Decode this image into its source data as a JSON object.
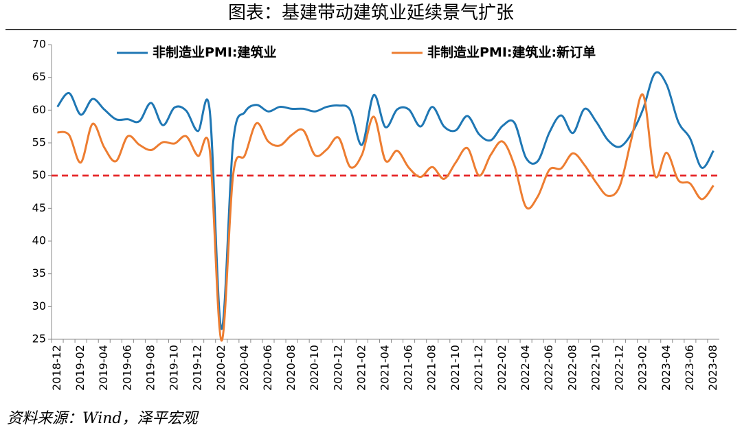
{
  "chart_data": {
    "type": "line",
    "title": "图表：基建带动建筑业延续景气扩张",
    "source": "资料来源：Wind，泽平宏观",
    "categories": [
      "2018-12",
      null,
      "2019-02",
      null,
      "2019-04",
      null,
      "2019-06",
      null,
      "2019-08",
      null,
      "2019-10",
      null,
      "2019-12",
      null,
      "2020-02",
      null,
      "2020-04",
      null,
      "2020-06",
      null,
      "2020-08",
      null,
      "2020-10",
      null,
      "2020-12",
      null,
      "2021-02",
      null,
      "2021-04",
      null,
      "2021-06",
      null,
      "2021-08",
      null,
      "2021-10",
      null,
      "2021-12",
      null,
      "2022-02",
      null,
      "2022-04",
      null,
      "2022-06",
      null,
      "2022-08",
      null,
      "2022-10",
      null,
      "2022-12",
      null,
      "2023-02",
      null,
      "2023-04",
      null,
      "2023-06",
      null,
      "2023-08"
    ],
    "series": [
      {
        "name": "非制造业PMI:建筑业",
        "color": "#1f77b4",
        "values": [
          60.5,
          62.6,
          59.3,
          61.7,
          60.1,
          58.6,
          58.6,
          58.3,
          61.1,
          57.7,
          60.4,
          59.9,
          56.8,
          60.0,
          26.6,
          55.1,
          59.7,
          60.8,
          59.8,
          60.5,
          60.2,
          60.2,
          59.8,
          60.5,
          60.7,
          60.0,
          54.7,
          62.3,
          57.4,
          60.1,
          60.1,
          57.5,
          60.5,
          57.5,
          56.9,
          59.1,
          56.3,
          55.4,
          57.6,
          58.1,
          52.7,
          52.2,
          56.6,
          59.2,
          56.5,
          60.2,
          58.2,
          55.4,
          54.4,
          56.4,
          60.2,
          65.6,
          63.9,
          58.2,
          55.7,
          51.2,
          53.8
        ]
      },
      {
        "name": "非制造业PMI:建筑业:新订单",
        "color": "#ed7d31",
        "values": [
          56.6,
          56.2,
          52.0,
          57.9,
          54.3,
          52.2,
          56.0,
          54.7,
          53.9,
          55.1,
          54.9,
          56.0,
          53.0,
          54.0,
          24.8,
          50.1,
          53.1,
          58.0,
          55.2,
          54.6,
          56.2,
          56.9,
          53.1,
          54.0,
          55.8,
          51.3,
          53.2,
          59.0,
          52.3,
          53.8,
          51.2,
          49.8,
          51.3,
          49.5,
          52.0,
          54.2,
          50.0,
          53.2,
          55.2,
          51.6,
          45.2,
          46.8,
          50.9,
          51.1,
          53.4,
          51.6,
          48.9,
          46.9,
          48.4,
          55.6,
          62.3,
          50.0,
          53.5,
          49.3,
          48.8,
          46.4,
          48.5
        ]
      }
    ],
    "reference_line": {
      "value": 50,
      "color": "#e41a1c"
    },
    "ylim": [
      25,
      70
    ],
    "yticks": [
      25,
      30,
      35,
      40,
      45,
      50,
      55,
      60,
      65,
      70
    ],
    "grid": false
  }
}
